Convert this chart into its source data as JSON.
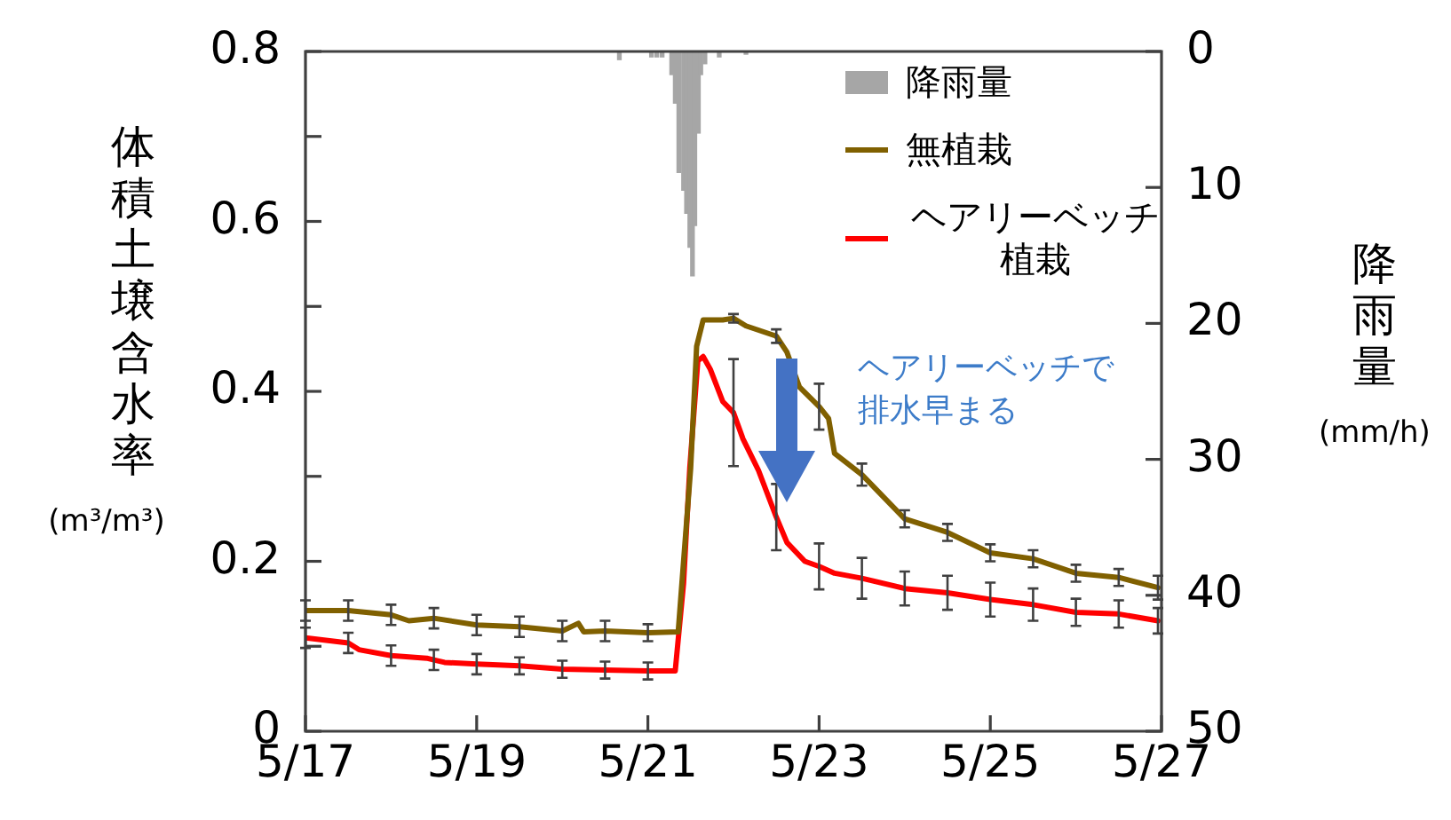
{
  "chart_data": {
    "type": "line",
    "ylabel": "体積土壌含水率(m³/m³)",
    "y2label": "降雨量(mm/h)",
    "xlim": [
      "--05-17",
      "--05-27"
    ],
    "xticks": [
      {
        "value": "--05-17",
        "label": "5/17"
      },
      {
        "value": "--05-19",
        "label": "5/19"
      },
      {
        "value": "--05-21",
        "label": "5/21"
      },
      {
        "value": "--05-23",
        "label": "5/23"
      },
      {
        "value": "--05-25",
        "label": "5/25"
      },
      {
        "value": "--05-27",
        "label": "5/27"
      }
    ],
    "ylim": [
      0,
      0.8
    ],
    "yticks": [
      0,
      {
        "value": 0.1,
        "label": null
      },
      0.2,
      {
        "value": 0.3,
        "label": null
      },
      0.4,
      {
        "value": 0.5,
        "label": null
      },
      0.6,
      {
        "value": 0.7,
        "label": null
      },
      0.8
    ],
    "y2lim": [
      50,
      0
    ],
    "y2ticks": [
      0,
      10,
      20,
      30,
      40,
      50
    ],
    "grid": false,
    "legend": "top right",
    "line_style": "solid",
    "annotations": [
      "ヘアリーベッチで排水早まる"
    ],
    "series": [
      {
        "name": "降雨量",
        "type": "bar",
        "axis": "y2",
        "color": "#a6a6a6",
        "x": [
          "--05-20T16:00",
          "--05-21T01:00",
          "--05-21T02:30",
          "--05-21T04:00",
          "--05-21T06:40",
          "--05-21T07:40",
          "--05-21T08:40",
          "--05-21T10:00",
          "--05-21T10:50",
          "--05-21T11:45",
          "--05-21T12:30",
          "--05-21T13:10",
          "--05-21T14:10",
          "--05-21T14:50",
          "--05-21T16:00",
          "--05-21T20:00",
          "--05-22T03:30"
        ],
        "values": [
          0.6,
          0.4,
          0.4,
          0.4,
          1.7,
          3.8,
          8.9,
          10.2,
          11.9,
          14.4,
          16.5,
          12.8,
          6.0,
          1.7,
          0.9,
          0.4,
          0.2
        ]
      },
      {
        "name": "無植栽",
        "color": "#806000",
        "x": [
          "--05-17T00:00",
          "--05-17T12:00",
          "--05-18T00:00",
          "--05-18T05:00",
          "--05-18T12:00",
          "--05-19T00:00",
          "--05-19T12:00",
          "--05-20T00:00",
          "--05-20T04:30",
          "--05-20T06:00",
          "--05-20T12:00",
          "--05-21T00:00",
          "--05-21T08:30",
          "--05-21T12:00",
          "--05-21T13:40",
          "--05-21T15:30",
          "--05-21T21:00",
          "--05-22T00:00",
          "--05-22T03:30",
          "--05-22T12:00",
          "--05-22T15:00",
          "--05-22T18:30",
          "--05-23T00:00",
          "--05-23T02:40",
          "--05-23T04:20",
          "--05-23T12:00",
          "--05-24T00:00",
          "--05-24T12:00",
          "--05-25T00:00",
          "--05-25T12:00",
          "--05-26T00:00",
          "--05-26T12:00",
          "--05-26T23:00"
        ],
        "values": [
          0.142,
          0.142,
          0.137,
          0.13,
          0.133,
          0.125,
          0.123,
          0.118,
          0.127,
          0.117,
          0.118,
          0.116,
          0.117,
          0.31,
          0.453,
          0.484,
          0.484,
          0.486,
          0.477,
          0.465,
          0.446,
          0.405,
          0.382,
          0.368,
          0.327,
          0.302,
          0.25,
          0.234,
          0.21,
          0.203,
          0.186,
          0.181,
          0.169
        ],
        "errors": [
          0.012,
          0.012,
          0.012,
          null,
          0.012,
          0.012,
          0.012,
          0.012,
          null,
          null,
          0.012,
          0.01,
          null,
          null,
          null,
          null,
          null,
          0.005,
          null,
          0.008,
          null,
          null,
          0.027,
          null,
          null,
          0.013,
          0.01,
          0.01,
          0.01,
          0.01,
          0.01,
          0.01,
          0.014
        ]
      },
      {
        "name": "ヘアリーベッチ植栽",
        "color": "#ff0000",
        "x": [
          "--05-17T00:00",
          "--05-17T12:00",
          "--05-17T15:00",
          "--05-18T00:00",
          "--05-18T10:00",
          "--05-18T12:00",
          "--05-18T15:00",
          "--05-19T00:00",
          "--05-19T12:00",
          "--05-20T00:00",
          "--05-20T12:00",
          "--05-21T00:00",
          "--05-21T07:40",
          "--05-21T10:00",
          "--05-21T11:45",
          "--05-21T14:00",
          "--05-21T15:30",
          "--05-21T17:30",
          "--05-21T21:00",
          "--05-22T00:00",
          "--05-22T02:40",
          "--05-22T07:00",
          "--05-22T12:00",
          "--05-22T15:00",
          "--05-22T20:00",
          "--05-23T00:00",
          "--05-23T04:20",
          "--05-23T12:00",
          "--05-24T00:00",
          "--05-24T12:00",
          "--05-25T00:00",
          "--05-25T12:00",
          "--05-26T00:00",
          "--05-26T12:00",
          "--05-26T23:00"
        ],
        "values": [
          0.11,
          0.104,
          0.096,
          0.089,
          0.086,
          0.084,
          0.081,
          0.079,
          0.077,
          0.073,
          0.072,
          0.071,
          0.071,
          0.174,
          0.31,
          0.436,
          0.441,
          0.426,
          0.388,
          0.375,
          0.344,
          0.307,
          0.252,
          0.222,
          0.2,
          0.194,
          0.186,
          0.18,
          0.168,
          0.163,
          0.155,
          0.149,
          0.14,
          0.138,
          0.13
        ],
        "errors": [
          0.012,
          0.012,
          null,
          0.012,
          null,
          0.012,
          null,
          0.012,
          0.01,
          0.01,
          0.01,
          0.01,
          null,
          null,
          null,
          null,
          null,
          null,
          null,
          0.063,
          null,
          null,
          0.039,
          null,
          null,
          0.027,
          null,
          0.024,
          0.02,
          0.02,
          0.02,
          0.019,
          0.016,
          0.016,
          0.015
        ]
      }
    ]
  }
}
